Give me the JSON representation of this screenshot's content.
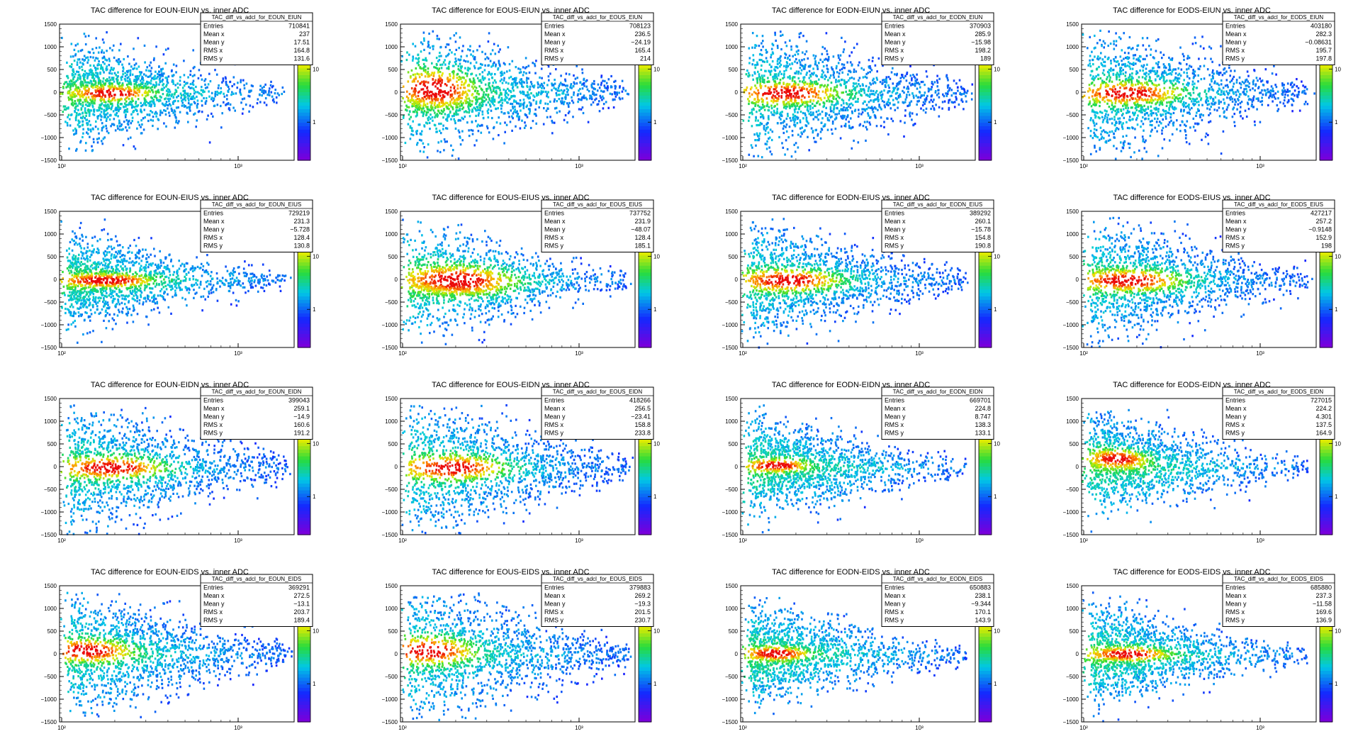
{
  "chart_data": [
    {
      "type": "heatmap",
      "title": "TAC difference for EOUN-EIUN vs. inner ADC",
      "stats": {
        "name": "TAC_diff_vs_adcl_for_EOUN_EIUN",
        "entries": "710841",
        "mean_x": "237",
        "mean_y": "17.51",
        "rms_x": "164.8",
        "rms_y": "131.6"
      },
      "palette_ticks": [
        "10",
        "1"
      ],
      "feature": {
        "cx": 0.22,
        "cy": 0,
        "tiltY": 0,
        "coreW": 0.1,
        "coreH": 100,
        "spread": 1.0,
        "intensity": 1.0,
        "band": 0
      }
    },
    {
      "type": "heatmap",
      "title": "TAC difference for EOUS-EIUN vs. inner ADC",
      "stats": {
        "name": "TAC_diff_vs_adcl_for_EOUS_EIUN",
        "entries": "708123",
        "mean_x": "236.5",
        "mean_y": "-24.19",
        "rms_x": "165.4",
        "rms_y": "214"
      },
      "palette_ticks": [
        "10",
        "1"
      ],
      "feature": {
        "cx": 0.15,
        "cy": 100,
        "tiltY": -200,
        "coreW": 0.1,
        "coreH": 250,
        "spread": 1.2,
        "intensity": 1.0,
        "band": -250
      }
    },
    {
      "type": "heatmap",
      "title": "TAC difference for EODN-EIUN vs. inner ADC",
      "stats": {
        "name": "TAC_diff_vs_adcl_for_EODN_EIUN",
        "entries": "370903",
        "mean_x": "285.9",
        "mean_y": "-15.98",
        "rms_x": "198.2",
        "rms_y": "189"
      },
      "palette_ticks": [
        "10",
        "1"
      ],
      "feature": {
        "cx": 0.2,
        "cy": 0,
        "tiltY": 0,
        "coreW": 0.14,
        "coreH": 150,
        "spread": 1.3,
        "intensity": 0.85,
        "band": 0
      }
    },
    {
      "type": "heatmap",
      "title": "TAC difference for EODS-EIUN vs. inner ADC",
      "stats": {
        "name": "TAC_diff_vs_adcl_for_EODS_EIUN",
        "entries": "403180",
        "mean_x": "282.3",
        "mean_y": "-0.08631",
        "rms_x": "195.7",
        "rms_y": "197.8"
      },
      "palette_ticks": [
        "10",
        "1"
      ],
      "feature": {
        "cx": 0.2,
        "cy": 0,
        "tiltY": 0,
        "coreW": 0.14,
        "coreH": 150,
        "spread": 1.3,
        "intensity": 0.85,
        "band": 0
      }
    },
    {
      "type": "heatmap",
      "title": "TAC difference for EOUN-EIUS vs. inner ADC",
      "stats": {
        "name": "TAC_diff_vs_adcl_for_EOUN_EIUS",
        "entries": "729219",
        "mean_x": "231.3",
        "mean_y": "-5.728",
        "rms_x": "128.4",
        "rms_y": "130.8"
      },
      "palette_ticks": [
        "10",
        "1"
      ],
      "feature": {
        "cx": 0.2,
        "cy": 0,
        "tiltY": 0,
        "coreW": 0.12,
        "coreH": 90,
        "spread": 0.9,
        "intensity": 1.0,
        "band": 0
      }
    },
    {
      "type": "heatmap",
      "title": "TAC difference for EOUS-EIUS vs. inner ADC",
      "stats": {
        "name": "TAC_diff_vs_adcl_for_EOUS_EIUS",
        "entries": "737752",
        "mean_x": "231.9",
        "mean_y": "-48.07",
        "rms_x": "128.4",
        "rms_y": "185.1"
      },
      "palette_ticks": [
        "10",
        "1"
      ],
      "feature": {
        "cx": 0.25,
        "cy": 0,
        "tiltY": -150,
        "coreW": 0.14,
        "coreH": 200,
        "spread": 1.1,
        "intensity": 1.0,
        "band": -200
      }
    },
    {
      "type": "heatmap",
      "title": "TAC difference for EODN-EIUS vs. inner ADC",
      "stats": {
        "name": "TAC_diff_vs_adcl_for_EODN_EIUS",
        "entries": "389292",
        "mean_x": "260.1",
        "mean_y": "-15.78",
        "rms_x": "154.8",
        "rms_y": "190.8"
      },
      "palette_ticks": [
        "10",
        "1"
      ],
      "feature": {
        "cx": 0.2,
        "cy": 0,
        "tiltY": 0,
        "coreW": 0.14,
        "coreH": 150,
        "spread": 1.2,
        "intensity": 0.85,
        "band": 0
      }
    },
    {
      "type": "heatmap",
      "title": "TAC difference for EODS-EIUS vs. inner ADC",
      "stats": {
        "name": "TAC_diff_vs_adcl_for_EODS_EIUS",
        "entries": "427217",
        "mean_x": "257.2",
        "mean_y": "-0.9148",
        "rms_x": "152.9",
        "rms_y": "198"
      },
      "palette_ticks": [
        "10",
        "1"
      ],
      "feature": {
        "cx": 0.2,
        "cy": 0,
        "tiltY": 0,
        "coreW": 0.14,
        "coreH": 150,
        "spread": 1.2,
        "intensity": 0.85,
        "band": 0
      }
    },
    {
      "type": "heatmap",
      "title": "TAC difference for EOUN-EIDN vs. inner ADC",
      "stats": {
        "name": "TAC_diff_vs_adcl_for_EOUN_EIDN",
        "entries": "399043",
        "mean_x": "259.1",
        "mean_y": "-14.9",
        "rms_x": "160.6",
        "rms_y": "191.2"
      },
      "palette_ticks": [
        "10",
        "1"
      ],
      "feature": {
        "cx": 0.22,
        "cy": 0,
        "tiltY": 0,
        "coreW": 0.14,
        "coreH": 150,
        "spread": 1.3,
        "intensity": 0.85,
        "band": 0
      }
    },
    {
      "type": "heatmap",
      "title": "TAC difference for EOUS-EIDN vs. inner ADC",
      "stats": {
        "name": "TAC_diff_vs_adcl_for_EOUS_EIDN",
        "entries": "418266",
        "mean_x": "256.5",
        "mean_y": "-23.41",
        "rms_x": "158.8",
        "rms_y": "233.8"
      },
      "palette_ticks": [
        "10",
        "1"
      ],
      "feature": {
        "cx": 0.22,
        "cy": 0,
        "tiltY": 0,
        "coreW": 0.14,
        "coreH": 170,
        "spread": 1.4,
        "intensity": 0.85,
        "band": 0
      }
    },
    {
      "type": "heatmap",
      "title": "TAC difference for EODN-EIDN vs. inner ADC",
      "stats": {
        "name": "TAC_diff_vs_adcl_for_EODN_EIDN",
        "entries": "669701",
        "mean_x": "224.8",
        "mean_y": "8.747",
        "rms_x": "138.3",
        "rms_y": "133.1"
      },
      "palette_ticks": [
        "10",
        "1"
      ],
      "feature": {
        "cx": 0.15,
        "cy": 50,
        "tiltY": 0,
        "coreW": 0.08,
        "coreH": 80,
        "spread": 1.0,
        "intensity": 1.0,
        "band": 0
      }
    },
    {
      "type": "heatmap",
      "title": "TAC difference for EODS-EIDN vs. inner ADC",
      "stats": {
        "name": "TAC_diff_vs_adcl_for_EODS_EIDN",
        "entries": "727015",
        "mean_x": "224.2",
        "mean_y": "4.301",
        "rms_x": "137.5",
        "rms_y": "164.9"
      },
      "palette_ticks": [
        "10",
        "1"
      ],
      "feature": {
        "cx": 0.15,
        "cy": 200,
        "tiltY": -250,
        "coreW": 0.08,
        "coreH": 120,
        "spread": 1.0,
        "intensity": 1.0,
        "band": 0
      }
    },
    {
      "type": "heatmap",
      "title": "TAC difference for EOUN-EIDS vs. inner ADC",
      "stats": {
        "name": "TAC_diff_vs_adcl_for_EOUN_EIDS",
        "entries": "369291",
        "mean_x": "272.5",
        "mean_y": "-13.1",
        "rms_x": "203.7",
        "rms_y": "189.4"
      },
      "palette_ticks": [
        "10",
        "1"
      ],
      "feature": {
        "cx": 0.12,
        "cy": 100,
        "tiltY": -80,
        "coreW": 0.12,
        "coreH": 150,
        "spread": 1.3,
        "intensity": 0.85,
        "band": 0
      }
    },
    {
      "type": "heatmap",
      "title": "TAC difference for EOUS-EIDS vs. inner ADC",
      "stats": {
        "name": "TAC_diff_vs_adcl_for_EOUS_EIDS",
        "entries": "379883",
        "mean_x": "269.2",
        "mean_y": "-19.3",
        "rms_x": "201.5",
        "rms_y": "230.7"
      },
      "palette_ticks": [
        "10",
        "1"
      ],
      "feature": {
        "cx": 0.12,
        "cy": 100,
        "tiltY": -80,
        "coreW": 0.12,
        "coreH": 180,
        "spread": 1.4,
        "intensity": 0.85,
        "band": 0
      }
    },
    {
      "type": "heatmap",
      "title": "TAC difference for EODN-EIDS vs. inner ADC",
      "stats": {
        "name": "TAC_diff_vs_adcl_for_EODN_EIDS",
        "entries": "650883",
        "mean_x": "238.1",
        "mean_y": "-9.344",
        "rms_x": "170.1",
        "rms_y": "143.9"
      },
      "palette_ticks": [
        "10",
        "1"
      ],
      "feature": {
        "cx": 0.15,
        "cy": 30,
        "tiltY": -60,
        "coreW": 0.08,
        "coreH": 90,
        "spread": 1.0,
        "intensity": 1.0,
        "band": 0
      }
    },
    {
      "type": "heatmap",
      "title": "TAC difference for EODS-EIDS vs. inner ADC",
      "stats": {
        "name": "TAC_diff_vs_adcl_for_EODS_EIDS",
        "entries": "685880",
        "mean_x": "237.3",
        "mean_y": "-11.58",
        "rms_x": "169.6",
        "rms_y": "136.9"
      },
      "palette_ticks": [
        "10",
        "1"
      ],
      "feature": {
        "cx": 0.2,
        "cy": 20,
        "tiltY": -40,
        "coreW": 0.1,
        "coreH": 90,
        "spread": 1.0,
        "intensity": 1.0,
        "band": 0
      }
    }
  ],
  "common": {
    "y_ticks": [
      "1500",
      "1000",
      "500",
      "0",
      "-500",
      "-1000",
      "-1500"
    ],
    "x_ticks": [
      "10²",
      "10³"
    ],
    "stat_labels": {
      "entries": "Entries",
      "mean_x": "Mean x",
      "mean_y": "Mean y",
      "rms_x": "RMS x",
      "rms_y": "RMS y"
    },
    "ylim": [
      -1500,
      1500
    ],
    "xscale": "log"
  }
}
